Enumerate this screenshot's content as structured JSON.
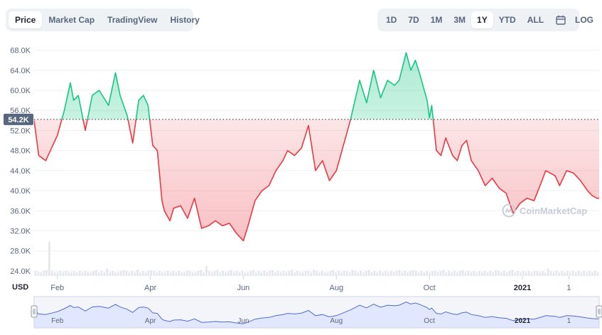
{
  "tabs_left": [
    {
      "label": "Price",
      "active": true
    },
    {
      "label": "Market Cap",
      "active": false
    },
    {
      "label": "TradingView",
      "active": false
    },
    {
      "label": "History",
      "active": false
    }
  ],
  "tabs_right": [
    {
      "label": "1D",
      "active": false
    },
    {
      "label": "7D",
      "active": false
    },
    {
      "label": "1M",
      "active": false
    },
    {
      "label": "3M",
      "active": false
    },
    {
      "label": "1Y",
      "active": true
    },
    {
      "label": "YTD",
      "active": false
    },
    {
      "label": "ALL",
      "active": false
    }
  ],
  "calendar_icon": "calendar-icon",
  "log_label": "LOG",
  "watermark_text": "CoinMarketCap",
  "colors": {
    "up": "#16c784",
    "down": "#ea3943",
    "grid": "#eef0f3",
    "baseline_dots": "#222531",
    "navigator_fill": "#dfe5ff",
    "navigator_line": "#4f6bcf"
  },
  "chart_data": {
    "type": "line",
    "currency_label": "USD",
    "baseline": 54200,
    "baseline_label": "54.2K",
    "y_ticks": [
      "24.0K",
      "28.0K",
      "32.0K",
      "36.0K",
      "40.0K",
      "44.0K",
      "48.0K",
      "52.0K",
      "56.0K",
      "60.0K",
      "64.0K",
      "68.0K"
    ],
    "y_tick_values": [
      24000,
      28000,
      32000,
      36000,
      40000,
      44000,
      48000,
      52000,
      56000,
      60000,
      64000,
      68000
    ],
    "ylim": [
      23000,
      69500
    ],
    "x_ticks": [
      "Feb",
      "Apr",
      "Jun",
      "Aug",
      "Oct",
      "2021",
      "1"
    ],
    "x_tick_positions": [
      0.5,
      2.5,
      4.5,
      6.5,
      8.5,
      10.5,
      11.5
    ],
    "x_range": [
      0,
      12.15
    ],
    "navigator_ticks": [
      "Feb",
      "Apr",
      "Jun",
      "Aug",
      "Oct",
      "2021",
      "1"
    ],
    "series": [
      {
        "x": [
          0.0,
          0.1,
          0.25,
          0.4,
          0.5,
          0.65,
          0.78,
          0.85,
          0.95,
          1.1,
          1.25,
          1.4,
          1.6,
          1.75,
          1.85,
          2.0,
          2.12,
          2.25,
          2.35,
          2.45,
          2.55,
          2.65,
          2.75,
          2.8,
          2.92,
          3.0,
          3.15,
          3.3,
          3.45,
          3.6,
          3.75,
          3.9,
          4.05,
          4.2,
          4.35,
          4.5,
          4.6,
          4.75,
          4.9,
          5.05,
          5.2,
          5.35,
          5.45,
          5.6,
          5.75,
          5.9,
          6.05,
          6.2,
          6.35,
          6.5,
          6.65,
          6.8,
          6.9,
          7.0,
          7.15,
          7.3,
          7.45,
          7.6,
          7.75,
          7.85,
          8.0,
          8.1,
          8.2,
          8.3,
          8.45,
          8.5,
          8.55,
          8.65,
          8.75,
          8.85,
          9.0,
          9.1,
          9.2,
          9.3,
          9.4,
          9.55,
          9.7,
          9.85,
          10.0,
          10.15,
          10.3,
          10.45,
          10.6,
          10.75,
          10.9,
          11.0,
          11.2,
          11.3,
          11.45,
          11.6,
          11.75,
          11.9,
          12.0,
          12.1,
          12.15
        ],
        "y": [
          54000,
          47000,
          46000,
          49000,
          51000,
          56000,
          61500,
          58000,
          59000,
          52000,
          59000,
          60000,
          57000,
          63500,
          59000,
          55000,
          49500,
          58000,
          59000,
          57000,
          49000,
          48000,
          38000,
          36000,
          34000,
          36500,
          37000,
          34500,
          38500,
          32500,
          33000,
          34000,
          33000,
          33500,
          31500,
          30000,
          33000,
          38000,
          40000,
          41000,
          44000,
          46000,
          48000,
          47000,
          48500,
          53000,
          44000,
          46000,
          42000,
          44000,
          49000,
          54000,
          58000,
          62000,
          57500,
          64000,
          58500,
          62000,
          61000,
          62000,
          67500,
          64000,
          66000,
          63000,
          58000,
          54500,
          57000,
          48000,
          47000,
          50500,
          47000,
          46000,
          49000,
          50000,
          46000,
          44000,
          41000,
          42500,
          40500,
          39500,
          35500,
          37500,
          38500,
          38000,
          41500,
          44000,
          43000,
          41000,
          44000,
          43500,
          42000,
          40000,
          39000,
          38500,
          38500
        ]
      }
    ],
    "volume": [
      4,
      3,
      3,
      4,
      5,
      28,
      4,
      3,
      3,
      4,
      3,
      4,
      3,
      3,
      4,
      3,
      4,
      3,
      4,
      3,
      3,
      4,
      5,
      3,
      4,
      3,
      6,
      3,
      4,
      3,
      3,
      4,
      5,
      4,
      3,
      4,
      3,
      5,
      3,
      4,
      3,
      4,
      5,
      4,
      3,
      4,
      3,
      3,
      4,
      3,
      4,
      3,
      4,
      3,
      3,
      4,
      4,
      3,
      3,
      4,
      5,
      3,
      8,
      4,
      3,
      4,
      5,
      3,
      4,
      3,
      4,
      5,
      3,
      4,
      3,
      4,
      3,
      3,
      4,
      5,
      3,
      4,
      3,
      4,
      3,
      4,
      5,
      3,
      4,
      3,
      4,
      3,
      4,
      5,
      3,
      4,
      3,
      3,
      4,
      4,
      3,
      5,
      4,
      3,
      4,
      3,
      3,
      4,
      5,
      3,
      4,
      3,
      4,
      4,
      3,
      5,
      4,
      3,
      4,
      3,
      4,
      5,
      3,
      4,
      3,
      4,
      3,
      4,
      3,
      4,
      3,
      4,
      5,
      3,
      4,
      3,
      4,
      5,
      4,
      3,
      4,
      3,
      4,
      3,
      4,
      4,
      3,
      4,
      5,
      3,
      4,
      3,
      4,
      3,
      4,
      5,
      3,
      4,
      3,
      4,
      3,
      4,
      3,
      4,
      3,
      4,
      3,
      5,
      4,
      3,
      4,
      3,
      4,
      5,
      3,
      4,
      3,
      4,
      3,
      4,
      3,
      4,
      4,
      3,
      4,
      3,
      6,
      4,
      3,
      4,
      3,
      4,
      3,
      4,
      3,
      4,
      3,
      4,
      3,
      4,
      3,
      4,
      3,
      4,
      3
    ]
  }
}
